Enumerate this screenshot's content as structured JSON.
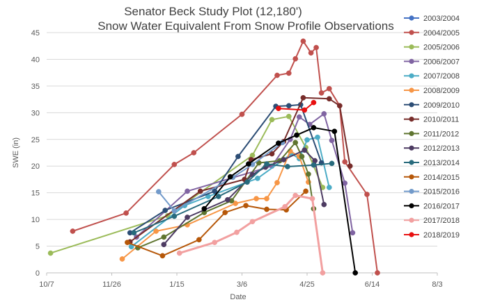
{
  "chart_data": {
    "type": "line",
    "title": [
      "Senator Beck Study Plot (12,180')",
      "Snow Water Equivalent From Snow Profile Observations"
    ],
    "xlabel": "Date",
    "ylabel": "SWE (in)",
    "ylim": [
      0,
      45
    ],
    "y_ticks": [
      "0",
      "5",
      "10",
      "15",
      "20",
      "25",
      "30",
      "35",
      "40",
      "45"
    ],
    "x_ticks": [
      "10/7",
      "11/26",
      "1/15",
      "3/6",
      "4/25",
      "6/14",
      "8/3"
    ],
    "x_tick_days": [
      0,
      50,
      100,
      150,
      200,
      250,
      300
    ],
    "xlim_days": [
      0,
      300
    ],
    "x_units": "days since 10/7",
    "grid": "horizontal",
    "legend_position": "right",
    "series": [
      {
        "name": "2003/2004",
        "color": "#4472c4",
        "x": [],
        "y": []
      },
      {
        "name": "2004/2005",
        "color": "#c0504d",
        "x": [
          20,
          61,
          98,
          113,
          150,
          177,
          186,
          191,
          197,
          203,
          207,
          211,
          217,
          225,
          229,
          246,
          254
        ],
        "y": [
          7.8,
          11.2,
          20.3,
          22.5,
          29.7,
          37.0,
          37.4,
          40.1,
          43.4,
          41.2,
          42.2,
          33.7,
          34.5,
          31.3,
          20.8,
          14.7,
          0
        ]
      },
      {
        "name": "2005/2006",
        "color": "#9bbb59",
        "x": [
          3,
          93,
          158,
          173,
          186,
          199,
          212
        ],
        "y": [
          3.7,
          10.7,
          22.0,
          28.7,
          29.3,
          23.5,
          16.0
        ]
      },
      {
        "name": "2006/2007",
        "color": "#8064a2",
        "x": [
          69,
          108,
          173,
          187,
          194,
          202,
          213,
          219,
          229,
          235
        ],
        "y": [
          6.7,
          15.3,
          20.0,
          25.0,
          29.2,
          27.8,
          29.8,
          24.8,
          16.8,
          7.5
        ]
      },
      {
        "name": "2007/2008",
        "color": "#4bacc6",
        "x": [
          65,
          106,
          124,
          162,
          188,
          194,
          200,
          208,
          217
        ],
        "y": [
          4.9,
          12.6,
          14.3,
          17.7,
          22.3,
          21.4,
          24.9,
          25.4,
          16.0
        ]
      },
      {
        "name": "2008/2009",
        "color": "#f79646",
        "x": [
          58,
          84,
          108,
          145,
          161,
          169,
          177,
          187,
          194,
          201
        ],
        "y": [
          2.6,
          7.8,
          9.0,
          13.0,
          13.9,
          13.9,
          16.9,
          22.8,
          21.8,
          17.0
        ]
      },
      {
        "name": "2009/2010",
        "color": "#2c4d75",
        "x": [
          64,
          91,
          129,
          147,
          176,
          186,
          195,
          211
        ],
        "y": [
          7.5,
          11.7,
          15.3,
          21.8,
          31.2,
          31.3,
          31.5,
          20.6
        ]
      },
      {
        "name": "2010/2011",
        "color": "#772c2a",
        "x": [
          64,
          118,
          152,
          157,
          173,
          182,
          197,
          217,
          225,
          233
        ],
        "y": [
          5.8,
          15.3,
          17.5,
          21.2,
          22.3,
          24.6,
          32.8,
          32.6,
          31.3,
          20.0
        ]
      },
      {
        "name": "2011/2012",
        "color": "#5f7530",
        "x": [
          70,
          90,
          121,
          142,
          163,
          179,
          191,
          196,
          201,
          205
        ],
        "y": [
          4.7,
          6.7,
          11.3,
          13.5,
          20.6,
          21.0,
          24.4,
          21.8,
          18.5,
          12.0
        ]
      },
      {
        "name": "2012/2013",
        "color": "#4d3b62",
        "x": [
          90,
          108,
          139,
          158,
          168,
          182,
          198,
          206,
          213
        ],
        "y": [
          5.3,
          10.4,
          13.7,
          18.4,
          19.8,
          21.2,
          23.0,
          21.0,
          12.8
        ]
      },
      {
        "name": "2013/2014",
        "color": "#276a7c",
        "x": [
          67,
          98,
          132,
          154,
          169,
          185,
          205,
          219
        ],
        "y": [
          7.5,
          10.6,
          14.3,
          17.0,
          20.4,
          19.9,
          20.2,
          20.5
        ]
      },
      {
        "name": "2014/2015",
        "color": "#b65708",
        "x": [
          62,
          89,
          117,
          137,
          153,
          169,
          184,
          199
        ],
        "y": [
          5.7,
          3.2,
          6.2,
          11.3,
          12.6,
          11.9,
          11.8,
          15.3
        ]
      },
      {
        "name": "2015/2016",
        "color": "#729aca",
        "x": [
          86,
          98,
          143,
          158,
          181
        ],
        "y": [
          15.2,
          11.6,
          17.9,
          20.3,
          24.4
        ]
      },
      {
        "name": "2016/2017",
        "color": "#000000",
        "x": [
          121,
          141,
          155,
          178,
          192,
          205,
          221,
          237
        ],
        "y": [
          12.0,
          18.0,
          20.4,
          24.3,
          25.8,
          27.2,
          26.5,
          0
        ]
      },
      {
        "name": "2017/2018",
        "color": "#f2a0a0",
        "x": [
          102,
          129,
          146,
          158,
          183,
          191,
          204,
          212
        ],
        "y": [
          3.7,
          5.7,
          7.6,
          9.6,
          12.4,
          14.5,
          13.9,
          0
        ]
      },
      {
        "name": "2018/2019",
        "color": "#e81010",
        "x": [
          178,
          198,
          205
        ],
        "y": [
          30.8,
          30.5,
          31.9
        ]
      }
    ]
  }
}
